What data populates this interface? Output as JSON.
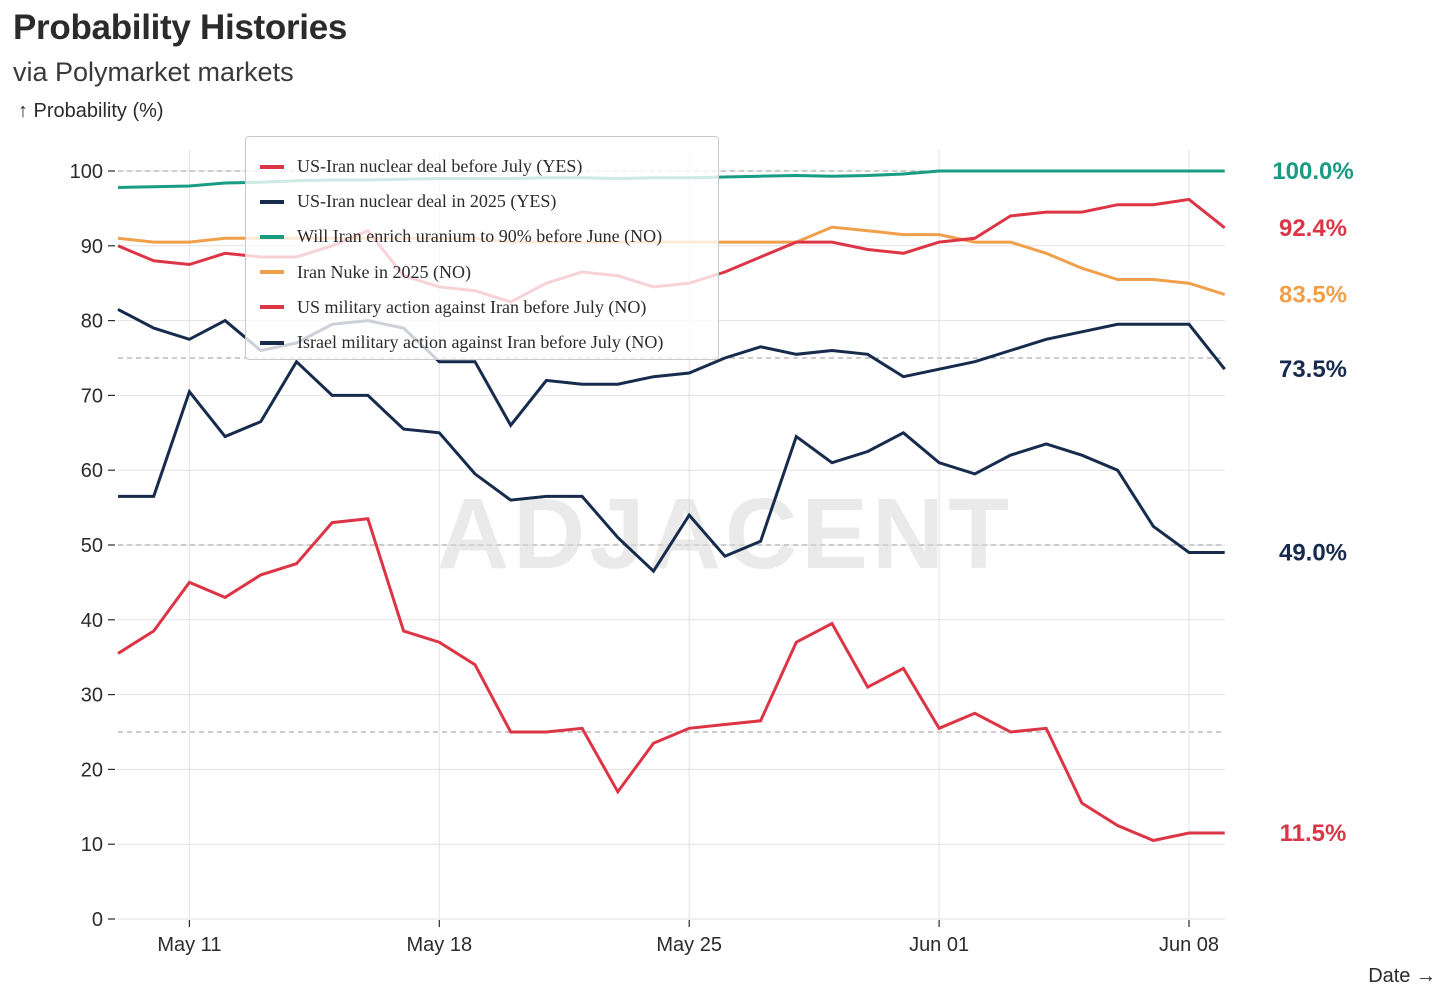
{
  "title": "Probability Histories",
  "subtitle": "via Polymarket markets",
  "chart_data": {
    "type": "line",
    "title": "Probability Histories",
    "subtitle": "via Polymarket markets",
    "ylabel": "↑ Probability (%)",
    "xlabel": "Date →",
    "ylim": [
      0,
      100
    ],
    "y_ticks": [
      0,
      10,
      20,
      30,
      40,
      50,
      60,
      70,
      80,
      90,
      100
    ],
    "y_dashed_refs": [
      25,
      50,
      75,
      100
    ],
    "grid": true,
    "x_start": "May 09",
    "x_end": "Jun 09",
    "x_ticks": [
      {
        "label": "May 11",
        "index": 2
      },
      {
        "label": "May 18",
        "index": 9
      },
      {
        "label": "May 25",
        "index": 16
      },
      {
        "label": "Jun 01",
        "index": 23
      },
      {
        "label": "Jun 08",
        "index": 30
      }
    ],
    "watermark": "ADJACENT",
    "legend_position": "top-left",
    "series": [
      {
        "name": "US-Iran nuclear deal before July (YES)",
        "color": "#dc3545",
        "end_label": "11.5%",
        "values": [
          35.5,
          38.5,
          45,
          43,
          46,
          47.5,
          53,
          53.5,
          38.5,
          37,
          34,
          25,
          25,
          25.5,
          17,
          23.5,
          25.5,
          26,
          26.5,
          37,
          39.5,
          31,
          33.5,
          25.5,
          27.5,
          25,
          25.5,
          15.5,
          12.5,
          10.5,
          11.5,
          11.5
        ]
      },
      {
        "name": "US-Iran nuclear deal in 2025 (YES)",
        "color": "#172b4d",
        "end_label": "49.0%",
        "values": [
          56.5,
          56.5,
          70.5,
          64.5,
          66.5,
          74.5,
          70,
          70,
          65.5,
          65,
          59.5,
          56,
          56.5,
          56.5,
          51,
          46.5,
          54,
          48.5,
          50.5,
          64.5,
          61,
          62.5,
          65,
          61,
          59.5,
          62,
          63.5,
          62,
          60,
          52.5,
          49,
          49
        ]
      },
      {
        "name": "Will Iran enrich uranium to 90% before June (NO)",
        "color": "#1a9c84",
        "end_label": "100.0%",
        "values": [
          97.8,
          97.9,
          98,
          98.4,
          98.5,
          98.7,
          98.8,
          98.8,
          98.9,
          99,
          99,
          99,
          99.1,
          99.1,
          99,
          99.1,
          99.1,
          99.2,
          99.3,
          99.4,
          99.3,
          99.4,
          99.6,
          100,
          100,
          100,
          100,
          100,
          100,
          100,
          100,
          100
        ]
      },
      {
        "name": "Iran Nuke in 2025 (NO)",
        "color": "#f0a04b",
        "end_label": "83.5%",
        "values": [
          91,
          90.5,
          90.5,
          91,
          91,
          91,
          91,
          91,
          91,
          91,
          91,
          90.5,
          90.5,
          90.5,
          90.5,
          90.5,
          90.5,
          90.5,
          90.5,
          90.5,
          92.5,
          92,
          91.5,
          91.5,
          90.5,
          90.5,
          89,
          87,
          85.5,
          85.5,
          85,
          83.5
        ]
      },
      {
        "name": "US military action against Iran before July (NO)",
        "color": "#dc3545",
        "end_label": "92.4%",
        "values": [
          90,
          88,
          87.5,
          89,
          88.5,
          88.5,
          90,
          92,
          86,
          84.5,
          84,
          82.5,
          85,
          86.5,
          86,
          84.5,
          85,
          86.5,
          88.5,
          90.5,
          90.5,
          89.5,
          89,
          90.5,
          91,
          94,
          94.5,
          94.5,
          95.5,
          95.5,
          96.2,
          92.4
        ]
      },
      {
        "name": "Israel military action against Iran before July (NO)",
        "color": "#172b4d",
        "end_label": "73.5%",
        "values": [
          81.5,
          79,
          77.5,
          80,
          76,
          77,
          79.5,
          80,
          79,
          74.5,
          74.5,
          66,
          72,
          71.5,
          71.5,
          72.5,
          73,
          75,
          76.5,
          75.5,
          76,
          75.5,
          72.5,
          73.5,
          74.5,
          76,
          77.5,
          78.5,
          79.5,
          79.5,
          79.5,
          73.5
        ]
      }
    ]
  }
}
